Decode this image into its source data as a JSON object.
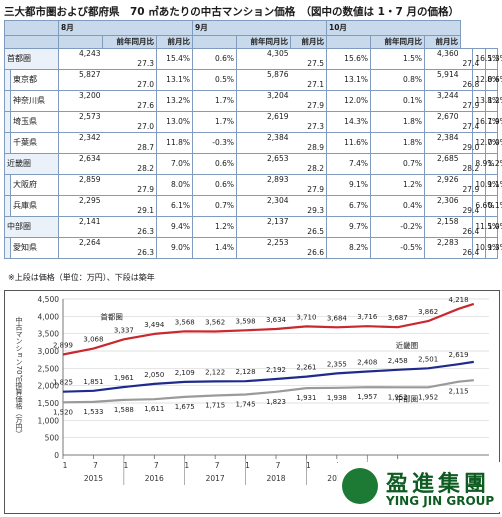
{
  "title": "三大都市圏および都府県　70 ㎡あたりの中古マンション価格　（図中の数値は 1・7 月の価格）",
  "table": {
    "months": [
      "8月",
      "9月",
      "10月"
    ],
    "col_yoy": "前年同月比",
    "col_mom": "前月比",
    "rows": [
      {
        "region": "首都圏",
        "level": 0,
        "cells": [
          [
            "4,243",
            "27.3",
            "15.4%",
            "0.6%"
          ],
          [
            "4,305",
            "27.5",
            "15.6%",
            "1.5%"
          ],
          [
            "4,360",
            "27.4",
            "16.5%",
            "1.3%"
          ]
        ]
      },
      {
        "region": "東京都",
        "level": 1,
        "cells": [
          [
            "5,827",
            "27.0",
            "13.1%",
            "0.5%"
          ],
          [
            "5,876",
            "27.1",
            "13.1%",
            "0.8%"
          ],
          [
            "5,914",
            "26.8",
            "12.8%",
            "0.6%"
          ]
        ]
      },
      {
        "region": "神奈川県",
        "level": 1,
        "cells": [
          [
            "3,200",
            "27.6",
            "13.2%",
            "1.7%"
          ],
          [
            "3,204",
            "27.9",
            "12.0%",
            "0.1%"
          ],
          [
            "3,244",
            "27.9",
            "13.8%",
            "1.2%"
          ]
        ]
      },
      {
        "region": "埼玉県",
        "level": 1,
        "cells": [
          [
            "2,573",
            "27.0",
            "13.0%",
            "1.7%"
          ],
          [
            "2,619",
            "27.3",
            "14.3%",
            "1.8%"
          ],
          [
            "2,670",
            "27.4",
            "16.7%",
            "1.9%"
          ]
        ]
      },
      {
        "region": "千葉県",
        "level": 1,
        "cells": [
          [
            "2,342",
            "28.7",
            "11.8%",
            "-0.3%"
          ],
          [
            "2,384",
            "28.9",
            "11.6%",
            "1.8%"
          ],
          [
            "2,384",
            "29.0",
            "12.7%",
            "0.0%"
          ]
        ]
      },
      {
        "region": "近畿圏",
        "level": 0,
        "cells": [
          [
            "2,634",
            "28.2",
            "7.0%",
            "0.6%"
          ],
          [
            "2,653",
            "28.2",
            "7.4%",
            "0.7%"
          ],
          [
            "2,685",
            "28.2",
            "8.9%",
            "1.2%"
          ]
        ]
      },
      {
        "region": "大阪府",
        "level": 1,
        "cells": [
          [
            "2,859",
            "27.9",
            "8.0%",
            "0.6%"
          ],
          [
            "2,893",
            "27.9",
            "9.1%",
            "1.2%"
          ],
          [
            "2,926",
            "27.9",
            "10.9%",
            "1.1%"
          ]
        ]
      },
      {
        "region": "兵庫県",
        "level": 1,
        "cells": [
          [
            "2,295",
            "29.1",
            "6.1%",
            "0.7%"
          ],
          [
            "2,304",
            "29.3",
            "6.7%",
            "0.4%"
          ],
          [
            "2,306",
            "29.4",
            "6.6%",
            "0.1%"
          ]
        ]
      },
      {
        "region": "中部圏",
        "level": 0,
        "cells": [
          [
            "2,141",
            "26.3",
            "9.4%",
            "1.2%"
          ],
          [
            "2,137",
            "26.5",
            "9.7%",
            "-0.2%"
          ],
          [
            "2,158",
            "26.4",
            "11.5%",
            "1.0%"
          ]
        ]
      },
      {
        "region": "愛知県",
        "level": 1,
        "cells": [
          [
            "2,264",
            "26.3",
            "9.0%",
            "1.4%"
          ],
          [
            "2,253",
            "26.6",
            "8.2%",
            "-0.5%"
          ],
          [
            "2,283",
            "26.4",
            "10.9%",
            "1.3%"
          ]
        ]
      }
    ]
  },
  "note": "※上段は価格（単位：万円）、下段は築年",
  "chart_data": {
    "type": "line",
    "ylabel": "中古マンション70㎡換算価格（万円）",
    "ylim": [
      0,
      4500
    ],
    "yticks": [
      "0",
      "500",
      "1,000",
      "1,500",
      "2,000",
      "2,500",
      "3,000",
      "3,500",
      "4,000",
      "4,500"
    ],
    "month_ticks": [
      "1",
      "7",
      "1",
      "7",
      "1",
      "7",
      "1",
      "7",
      "1",
      "7",
      "1",
      "7"
    ],
    "years": [
      "2015",
      "2016",
      "2017",
      "2018",
      "2019",
      "2020"
    ],
    "grid": true,
    "series": [
      {
        "name": "首都圏",
        "color": "#c8282e",
        "points": [
          [
            0,
            2899
          ],
          [
            1,
            3068
          ],
          [
            2,
            3337
          ],
          [
            3,
            3494
          ],
          [
            4,
            3568
          ],
          [
            5,
            3562
          ],
          [
            6,
            3598
          ],
          [
            7,
            3634
          ],
          [
            8,
            3710
          ],
          [
            9,
            3684
          ],
          [
            10,
            3716
          ],
          [
            11,
            3687
          ],
          [
            12,
            3862
          ],
          [
            13,
            4218
          ],
          [
            13.5,
            4360
          ]
        ],
        "labels": [
          "2,899",
          "3,068",
          "3,337",
          "3,494",
          "3,568",
          "3,562",
          "3,598",
          "3,634",
          "3,710",
          "3,684",
          "3,716",
          "3,687",
          "3,862",
          "4,218",
          ""
        ]
      },
      {
        "name": "近畿圏",
        "color": "#1f2b8c",
        "points": [
          [
            0,
            1825
          ],
          [
            1,
            1851
          ],
          [
            2,
            1961
          ],
          [
            3,
            2050
          ],
          [
            4,
            2109
          ],
          [
            5,
            2122
          ],
          [
            6,
            2128
          ],
          [
            7,
            2192
          ],
          [
            8,
            2261
          ],
          [
            9,
            2355
          ],
          [
            10,
            2408
          ],
          [
            11,
            2458
          ],
          [
            12,
            2501
          ],
          [
            13,
            2619
          ],
          [
            13.5,
            2685
          ]
        ],
        "labels": [
          "1,825",
          "1,851",
          "1,961",
          "2,050",
          "2,109",
          "2,122",
          "2,128",
          "2,192",
          "2,261",
          "2,355",
          "2,408",
          "2,458",
          "2,501",
          "2,619",
          ""
        ]
      },
      {
        "name": "中部圏",
        "color": "#9a9a9a",
        "points": [
          [
            0,
            1520
          ],
          [
            1,
            1533
          ],
          [
            2,
            1588
          ],
          [
            3,
            1611
          ],
          [
            4,
            1675
          ],
          [
            5,
            1715
          ],
          [
            6,
            1745
          ],
          [
            7,
            1823
          ],
          [
            8,
            1931
          ],
          [
            9,
            1938
          ],
          [
            10,
            1957
          ],
          [
            11,
            1952
          ],
          [
            12,
            1952
          ],
          [
            13,
            2115
          ],
          [
            13.5,
            2158
          ]
        ],
        "labels": [
          "1,520",
          "1,533",
          "1,588",
          "1,611",
          "1,675",
          "1,715",
          "1,745",
          "1,823",
          "1,931",
          "1,938",
          "1,957",
          "1,952",
          "1,952",
          "2,115",
          ""
        ]
      }
    ]
  },
  "logo": {
    "cn": "盈進集團",
    "en": "YING JIN GROUP"
  }
}
